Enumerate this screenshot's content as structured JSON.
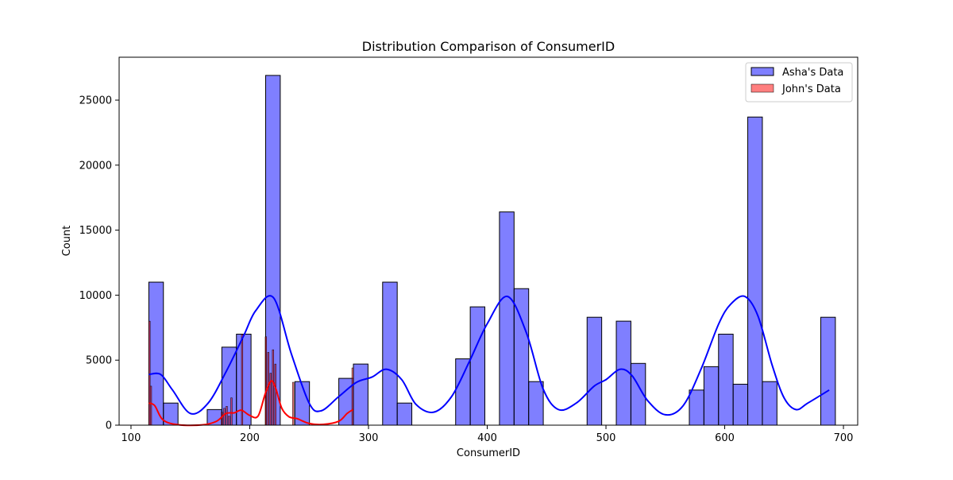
{
  "chart_data": {
    "type": "histogram",
    "title": "Distribution Comparison of ConsumerID",
    "xlabel": "ConsumerID",
    "ylabel": "Count",
    "xlim": [
      90,
      712
    ],
    "ylim": [
      0,
      28300
    ],
    "xticks": [
      100,
      200,
      300,
      400,
      500,
      600,
      700
    ],
    "yticks": [
      0,
      5000,
      10000,
      15000,
      20000,
      25000
    ],
    "legend_position": "top-right",
    "grid": false,
    "series": [
      {
        "name": "Asha's Data",
        "color": "#0000ff",
        "opacity": 0.5,
        "bin_width": 12.3,
        "bins": [
          {
            "x0": 115.0,
            "value": 11000
          },
          {
            "x0": 127.3,
            "value": 1700
          },
          {
            "x0": 164.2,
            "value": 1200
          },
          {
            "x0": 176.5,
            "value": 6000
          },
          {
            "x0": 188.8,
            "value": 7000
          },
          {
            "x0": 213.4,
            "value": 26900
          },
          {
            "x0": 238.0,
            "value": 3350
          },
          {
            "x0": 275.0,
            "value": 3600
          },
          {
            "x0": 287.3,
            "value": 4700
          },
          {
            "x0": 311.9,
            "value": 11000
          },
          {
            "x0": 324.2,
            "value": 1700
          },
          {
            "x0": 373.4,
            "value": 5100
          },
          {
            "x0": 385.7,
            "value": 9100
          },
          {
            "x0": 410.3,
            "value": 16400
          },
          {
            "x0": 422.6,
            "value": 10500
          },
          {
            "x0": 434.9,
            "value": 3350
          },
          {
            "x0": 484.1,
            "value": 8300
          },
          {
            "x0": 508.7,
            "value": 8000
          },
          {
            "x0": 521.0,
            "value": 4750
          },
          {
            "x0": 570.2,
            "value": 2700
          },
          {
            "x0": 582.5,
            "value": 4500
          },
          {
            "x0": 594.8,
            "value": 7000
          },
          {
            "x0": 607.1,
            "value": 3150
          },
          {
            "x0": 619.4,
            "value": 23700
          },
          {
            "x0": 631.7,
            "value": 3350
          },
          {
            "x0": 680.9,
            "value": 8300
          }
        ],
        "kde": {
          "x": [
            115,
            125,
            135,
            150,
            165,
            180,
            195,
            205,
            220,
            235,
            250,
            260,
            275,
            290,
            303,
            315,
            328,
            340,
            355,
            370,
            385,
            400,
            417,
            433,
            447,
            460,
            475,
            490,
            500,
            512,
            522,
            535,
            550,
            565,
            580,
            595,
            605,
            617,
            628,
            640,
            650,
            660,
            670,
            688
          ],
          "y": [
            3900,
            3900,
            2700,
            900,
            1700,
            4100,
            6900,
            8800,
            9800,
            5500,
            1700,
            1100,
            2200,
            3300,
            3700,
            4300,
            3500,
            1600,
            1000,
            2200,
            4900,
            7800,
            9900,
            7100,
            2800,
            1200,
            1700,
            3000,
            3500,
            4300,
            3800,
            1900,
            800,
            1500,
            4300,
            7800,
            9300,
            9900,
            8400,
            4600,
            2100,
            1200,
            1700,
            2700
          ]
        }
      },
      {
        "name": "John's Data",
        "color": "#ff0000",
        "opacity": 0.5,
        "bin_width": 1.2,
        "bins": [
          {
            "x0": 115.0,
            "value": 8000
          },
          {
            "x0": 116.2,
            "value": 3000
          },
          {
            "x0": 176.0,
            "value": 1000
          },
          {
            "x0": 178.0,
            "value": 1300
          },
          {
            "x0": 180.0,
            "value": 1450
          },
          {
            "x0": 182.0,
            "value": 700
          },
          {
            "x0": 184.0,
            "value": 2100
          },
          {
            "x0": 193.0,
            "value": 7000
          },
          {
            "x0": 213.0,
            "value": 6800
          },
          {
            "x0": 215.0,
            "value": 5600
          },
          {
            "x0": 217.0,
            "value": 4000
          },
          {
            "x0": 219.0,
            "value": 5800
          },
          {
            "x0": 221.0,
            "value": 4700
          },
          {
            "x0": 236.0,
            "value": 3300
          },
          {
            "x0": 286.0,
            "value": 4400
          }
        ],
        "kde": {
          "x": [
            115,
            120,
            127,
            140,
            160,
            172,
            180,
            187,
            193,
            200,
            207,
            213,
            218,
            222,
            227,
            233,
            240,
            250,
            262,
            275,
            282,
            287
          ],
          "y": [
            1700,
            1500,
            400,
            30,
            20,
            300,
            900,
            950,
            1150,
            750,
            700,
            2400,
            3400,
            2800,
            1300,
            650,
            500,
            130,
            60,
            300,
            900,
            1200
          ]
        }
      }
    ]
  }
}
